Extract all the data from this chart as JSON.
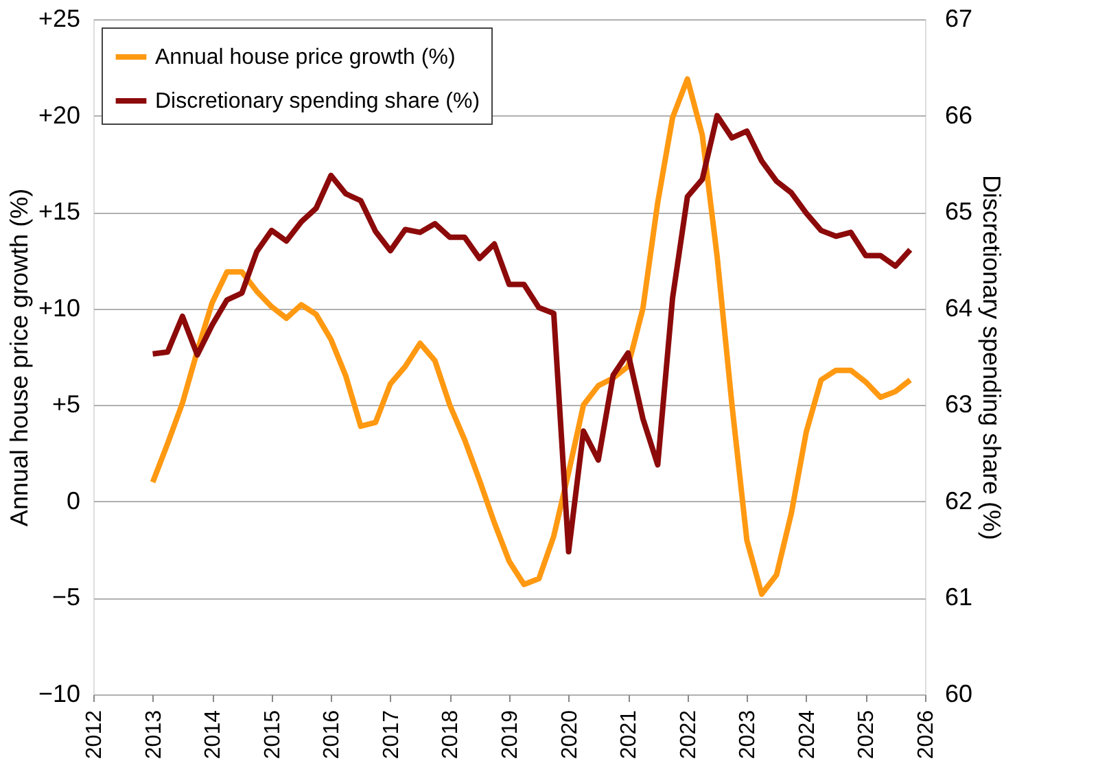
{
  "chart_data": {
    "type": "line",
    "ylabel": "Annual house price growth (%)",
    "y2label": "Discretionary spending share (%)",
    "x": [
      2013.0,
      2013.25,
      2013.5,
      2013.75,
      2014.0,
      2014.25,
      2014.5,
      2014.75,
      2015.0,
      2015.25,
      2015.5,
      2015.75,
      2016.0,
      2016.25,
      2016.5,
      2016.75,
      2017.0,
      2017.25,
      2017.5,
      2017.75,
      2018.0,
      2018.25,
      2018.5,
      2018.75,
      2019.0,
      2019.25,
      2019.5,
      2019.75,
      2020.0,
      2020.25,
      2020.5,
      2020.75,
      2021.0,
      2021.25,
      2021.5,
      2021.75,
      2022.0,
      2022.25,
      2022.5,
      2022.75,
      2023.0,
      2023.25,
      2023.5,
      2023.75,
      2024.0,
      2024.25,
      2024.5,
      2024.75,
      2025.0,
      2025.25,
      2025.5,
      2025.75
    ],
    "series": [
      {
        "name": "Annual house price growth (%)",
        "color": "#ff9912",
        "values": [
          1.0,
          3.0,
          5.1,
          7.8,
          10.3,
          11.9,
          11.9,
          10.9,
          10.1,
          9.5,
          10.2,
          9.7,
          8.4,
          6.5,
          3.9,
          4.1,
          6.1,
          7.0,
          8.2,
          7.3,
          5.0,
          3.2,
          1.1,
          -1.1,
          -3.1,
          -4.3,
          -4.0,
          -1.8,
          1.5,
          5.0,
          6.0,
          6.4,
          7.0,
          10.0,
          15.5,
          19.9,
          21.9,
          19.0,
          12.7,
          5.0,
          -2.0,
          -4.8,
          -3.8,
          -0.6,
          3.6,
          6.3,
          6.8,
          6.8,
          6.2,
          5.4,
          5.7,
          6.3
        ]
      },
      {
        "name": "Discretionary spending share (%)",
        "color": "#8c0a0a",
        "axis": "y2",
        "values": [
          63.53,
          63.55,
          63.92,
          63.52,
          63.83,
          64.09,
          64.16,
          64.59,
          64.81,
          64.7,
          64.9,
          65.04,
          65.38,
          65.19,
          65.12,
          64.8,
          64.6,
          64.82,
          64.79,
          64.88,
          64.74,
          64.74,
          64.52,
          64.67,
          64.25,
          64.25,
          64.01,
          63.95,
          61.48,
          62.73,
          62.43,
          63.31,
          63.54,
          62.86,
          62.38,
          64.11,
          65.16,
          65.34,
          66.0,
          65.77,
          65.84,
          65.53,
          65.32,
          65.2,
          64.99,
          64.81,
          64.75,
          64.79,
          64.55,
          64.55,
          64.44,
          64.61
        ]
      }
    ],
    "xlim": [
      2012,
      2026
    ],
    "xticks": [
      2012,
      2013,
      2014,
      2015,
      2016,
      2017,
      2018,
      2019,
      2020,
      2021,
      2022,
      2023,
      2024,
      2025,
      2026
    ],
    "ylim": [
      -10,
      25
    ],
    "yticks": [
      {
        "value": 25,
        "label": "+25"
      },
      {
        "value": 20,
        "label": "+20"
      },
      {
        "value": 15,
        "label": "+15"
      },
      {
        "value": 10,
        "label": "+10"
      },
      {
        "value": 5,
        "label": "+5"
      },
      0,
      -5,
      -10
    ],
    "y2lim": [
      60,
      67
    ],
    "y2ticks": [
      60,
      61,
      62,
      63,
      64,
      65,
      66,
      67
    ],
    "grid": "y",
    "legend": "top left",
    "line_style": "solid"
  }
}
